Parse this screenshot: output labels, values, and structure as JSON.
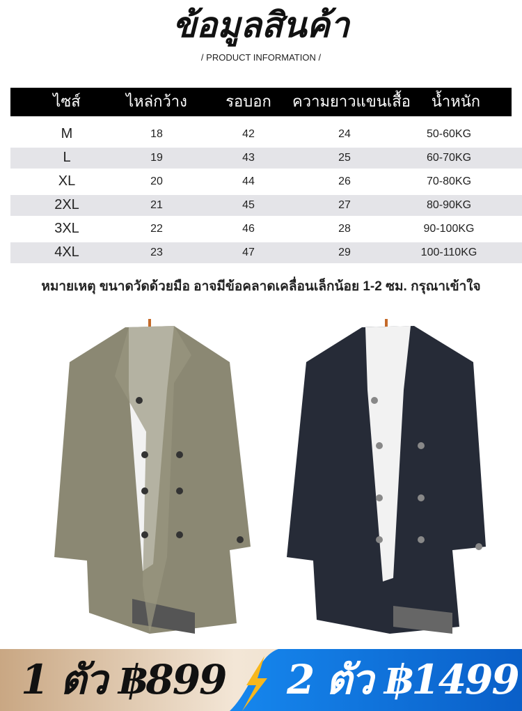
{
  "title": "ข้อมูลสินค้า",
  "subtitle": "/   PRODUCT INFORMATION   /",
  "table": {
    "headers": [
      "ไซส์",
      "ไหล่กว้าง",
      "รอบอก",
      "ความยาวแขนเสื้อ",
      "น้ำหนัก"
    ],
    "rows": [
      [
        "M",
        "18",
        "42",
        "24",
        "50-60KG"
      ],
      [
        "L",
        "19",
        "43",
        "25",
        "60-70KG"
      ],
      [
        "XL",
        "20",
        "44",
        "26",
        "70-80KG"
      ],
      [
        "2XL",
        "21",
        "45",
        "27",
        "80-90KG"
      ],
      [
        "3XL",
        "22",
        "46",
        "28",
        "90-100KG"
      ],
      [
        "4XL",
        "23",
        "47",
        "29",
        "100-110KG"
      ]
    ]
  },
  "note": "หมายเหตุ ขนาดวัดด้วยมือ อาจมีข้อคลาดเคลื่อนเล็กน้อย 1-2 ซม. กรุณาเข้าใจ",
  "products": [
    {
      "color": "#8a8670",
      "name": "khaki-coat"
    },
    {
      "color": "#252a36",
      "name": "navy-coat"
    }
  ],
  "pricing": {
    "offer1": "1 ตัว ฿899",
    "offer2": "2 ตัว ฿1499",
    "gold": "#e8d5bd",
    "blue": "#1077e0"
  }
}
